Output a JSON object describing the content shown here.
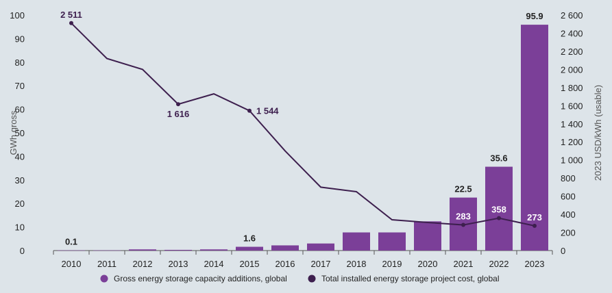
{
  "chart_data": {
    "type": "bar",
    "categories": [
      "2010",
      "2011",
      "2012",
      "2013",
      "2014",
      "2015",
      "2016",
      "2017",
      "2018",
      "2019",
      "2020",
      "2021",
      "2022",
      "2023"
    ],
    "series": [
      {
        "name": "Gross energy storage capacity additions, global",
        "type": "bar",
        "axis": "left",
        "color": "#7b3f98",
        "values": [
          0.1,
          0.1,
          0.5,
          0.3,
          0.5,
          1.6,
          2.2,
          3.0,
          7.7,
          7.7,
          12.4,
          22.5,
          35.6,
          95.9
        ]
      },
      {
        "name": "Total installed energy storage project cost, global",
        "type": "line",
        "axis": "right",
        "color": "#3d1f4e",
        "values": [
          2511,
          2120,
          2000,
          1616,
          1730,
          1544,
          1100,
          700,
          650,
          340,
          310,
          283,
          358,
          273
        ]
      }
    ],
    "bar_labels": [
      {
        "index": 0,
        "text": "0.1"
      },
      {
        "index": 5,
        "text": "1.6"
      },
      {
        "index": 11,
        "text": "22.5"
      },
      {
        "index": 12,
        "text": "35.6"
      },
      {
        "index": 13,
        "text": "95.9"
      }
    ],
    "line_labels": [
      {
        "index": 0,
        "text": "2 511"
      },
      {
        "index": 3,
        "text": "1 616"
      },
      {
        "index": 5,
        "text": "1 544"
      },
      {
        "index": 11,
        "text": "283"
      },
      {
        "index": 12,
        "text": "358"
      },
      {
        "index": 13,
        "text": "273"
      }
    ],
    "y_left": {
      "label": "GWh gross",
      "ylim": [
        0,
        100
      ],
      "ticks": [
        "0",
        "10",
        "20",
        "30",
        "40",
        "50",
        "60",
        "70",
        "80",
        "90",
        "100"
      ]
    },
    "y_right": {
      "label": "2023 USD/kWh (usable)",
      "ylim": [
        0,
        2600
      ],
      "ticks": [
        "0",
        "200",
        "400",
        "600",
        "800",
        "1 000",
        "1 200",
        "1 400",
        "1 600",
        "1 800",
        "2 000",
        "2 200",
        "2 400",
        "2 600"
      ]
    },
    "grid": false,
    "legend_position": "bottom"
  }
}
